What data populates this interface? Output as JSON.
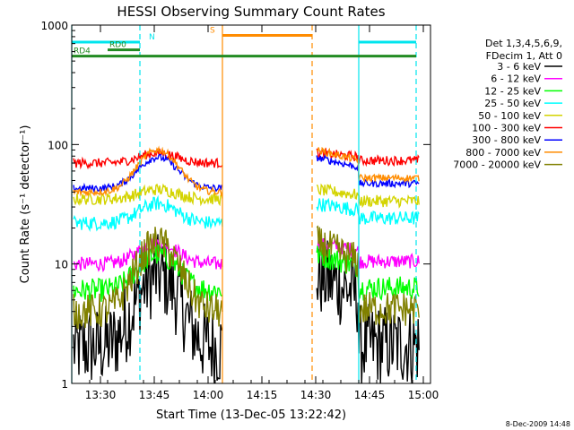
{
  "chart_data": {
    "type": "line",
    "title": "HESSI Observing Summary Count Rates",
    "xlabel": "Start Time (13-Dec-05 13:22:42)",
    "ylabel": "Count Rate (s⁻¹ detector⁻¹)",
    "y_scale": "log",
    "ylim": [
      1,
      1000
    ],
    "xlim_minutes": [
      "13:22",
      "15:02"
    ],
    "x_ticks": [
      "13:30",
      "13:45",
      "14:00",
      "14:15",
      "14:30",
      "14:45",
      "15:00"
    ],
    "y_ticks": [
      "1",
      "10",
      "100",
      "1000"
    ],
    "grid": false,
    "legend_position": "right",
    "legend_header": [
      "Det 1,3,4,5,6,9,",
      "FDecim 1, Att 0"
    ],
    "footer": "8-Dec-2009 14:48",
    "data_gaps": [
      [
        "14:04",
        "14:30"
      ]
    ],
    "vertical_lines": [
      {
        "time": "13:22",
        "color": "#00e5ee",
        "style": "solid"
      },
      {
        "time": "13:41",
        "color": "#00e5ee",
        "style": "dashed"
      },
      {
        "time": "14:04",
        "color": "#ff8c00",
        "style": "solid"
      },
      {
        "time": "14:29",
        "color": "#ff8c00",
        "style": "dashed"
      },
      {
        "time": "14:42",
        "color": "#00e5ee",
        "style": "solid"
      },
      {
        "time": "14:58",
        "color": "#00e5ee",
        "style": "dashed"
      }
    ],
    "flag_bars": [
      {
        "label": "N",
        "color": "#00e5ee",
        "level": 720,
        "segments": [
          [
            "13:22",
            "13:41"
          ],
          [
            "14:42",
            "14:58"
          ]
        ],
        "label_time": "13:43"
      },
      {
        "label": "S",
        "color": "#ff8c00",
        "level": 820,
        "segments": [
          [
            "14:04",
            "14:29"
          ]
        ],
        "label_time": "14:00"
      },
      {
        "label": "RD0",
        "color": "#228b22",
        "level": 620,
        "segments": [
          [
            "13:32",
            "13:41"
          ]
        ],
        "label_time": "13:32"
      },
      {
        "label": "RD4",
        "color": "#228b22",
        "level": 550,
        "segments": [
          [
            "13:22",
            "13:29"
          ],
          [
            "13:29",
            "13:59"
          ],
          [
            "13:59",
            "14:28"
          ],
          [
            "14:28",
            "14:43"
          ],
          [
            "14:43",
            "14:58"
          ]
        ],
        "label_time": "13:22"
      }
    ],
    "series": [
      {
        "name": "3 - 6 keV",
        "color": "#000000",
        "pre_start": 2,
        "mid": 8,
        "post_end": 2,
        "noise": 0.35
      },
      {
        "name": "6 - 12 keV",
        "color": "#ff00ff",
        "pre_start": 10,
        "mid": 15,
        "post_end": 10,
        "noise": 0.06
      },
      {
        "name": "12 - 25 keV",
        "color": "#00ff00",
        "pre_start": 6,
        "mid": 12,
        "post_end": 6,
        "noise": 0.1
      },
      {
        "name": "25 - 50 keV",
        "color": "#00ffff",
        "pre_start": 22,
        "mid": 32,
        "post_end": 23,
        "noise": 0.06
      },
      {
        "name": "50 - 100 keV",
        "color": "#d4d400",
        "pre_start": 35,
        "mid": 42,
        "post_end": 32,
        "noise": 0.05
      },
      {
        "name": "100 - 300 keV",
        "color": "#ff0000",
        "pre_start": 70,
        "mid": 85,
        "post_end": 70,
        "noise": 0.04
      },
      {
        "name": "300 - 800 keV",
        "color": "#0000ff",
        "pre_start": 43,
        "mid": 78,
        "post_end": 45,
        "noise": 0.03
      },
      {
        "name": "800 - 7000 keV",
        "color": "#ff8c00",
        "pre_start": 40,
        "mid": 90,
        "post_end": 50,
        "noise": 0.03
      },
      {
        "name": "7000 - 20000 keV",
        "color": "#808000",
        "pre_start": 4,
        "mid": 15,
        "post_end": 4,
        "noise": 0.15
      }
    ]
  }
}
